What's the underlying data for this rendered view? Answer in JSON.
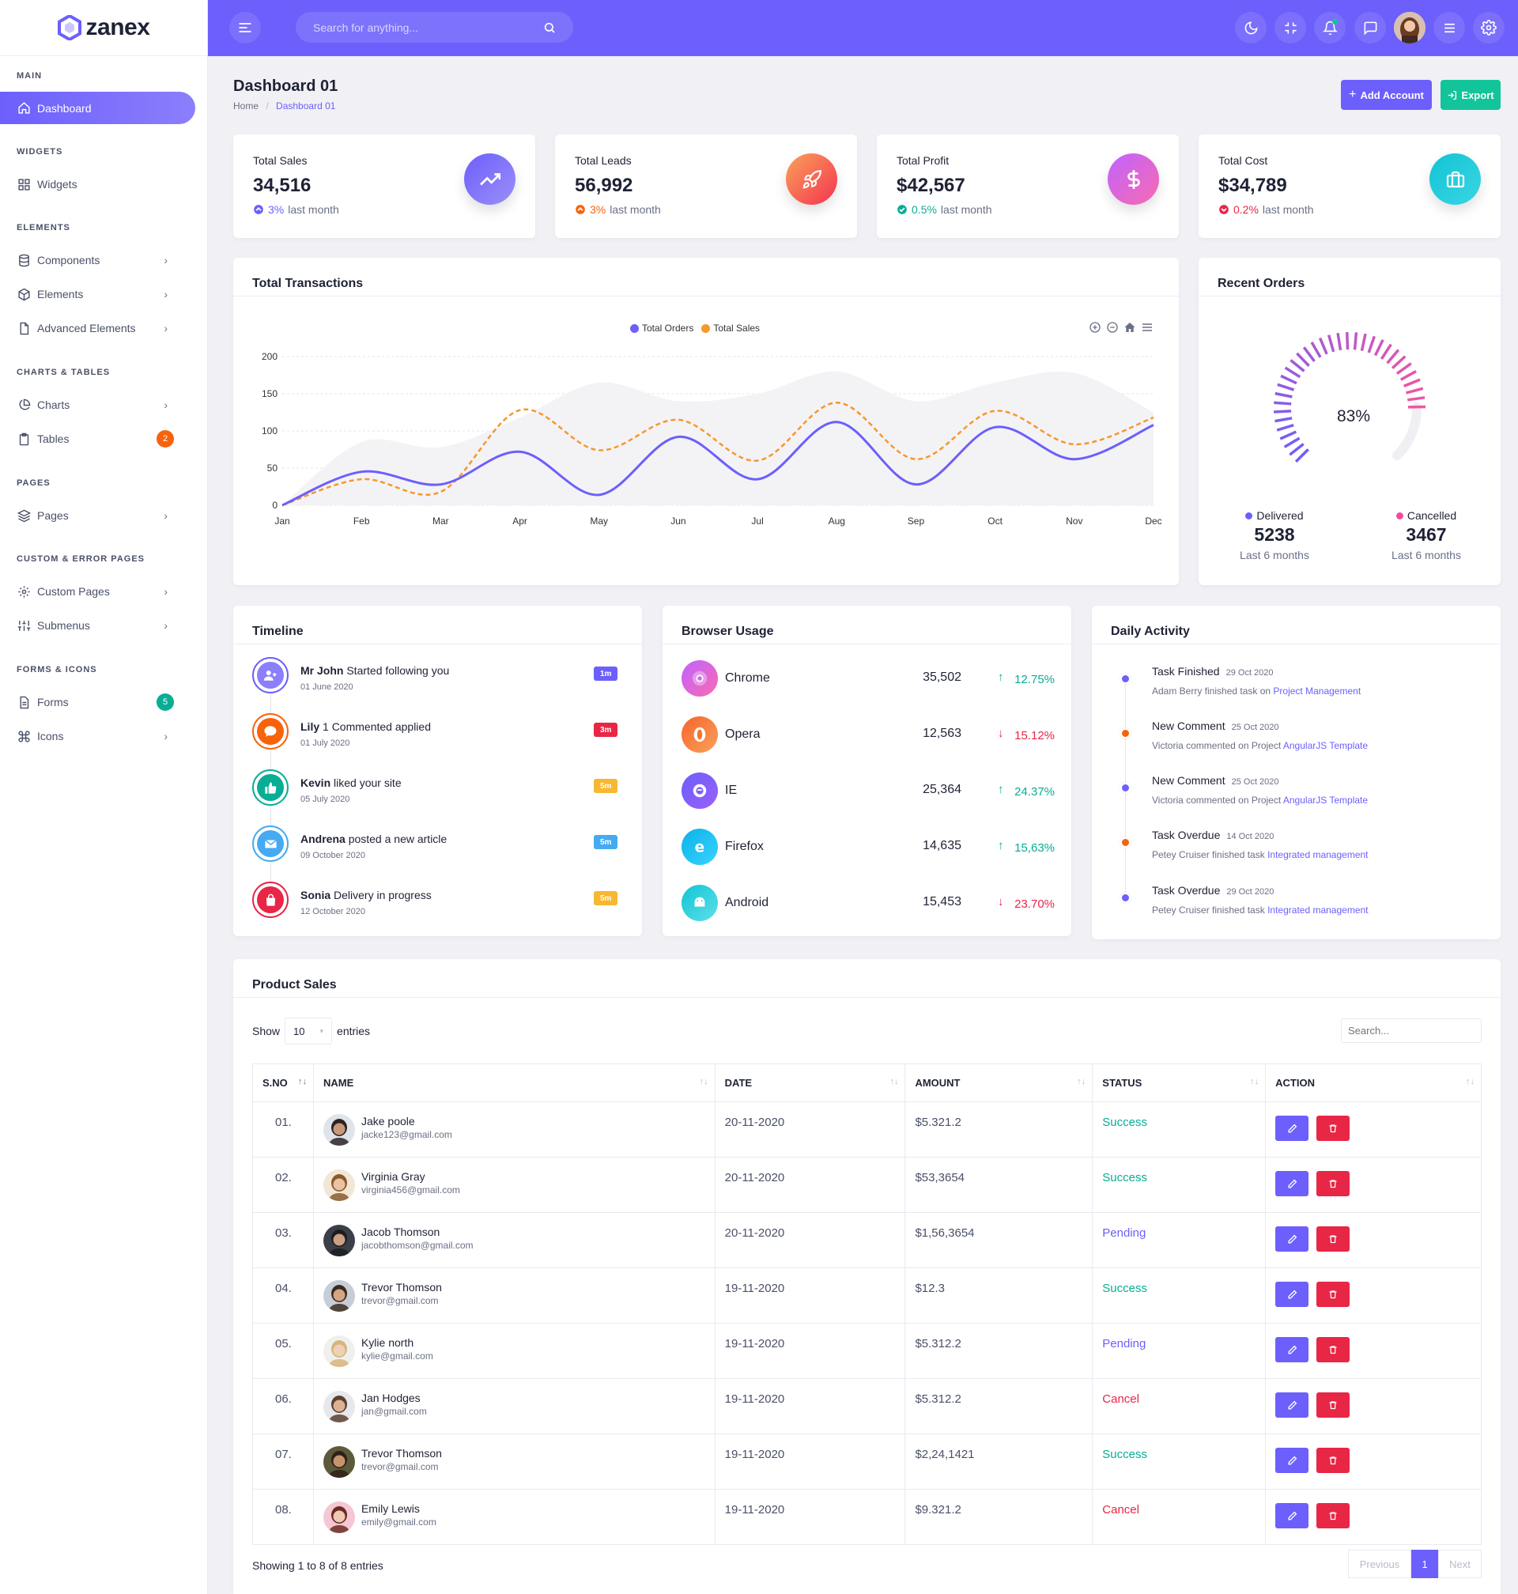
{
  "brand": {
    "name": "zanex"
  },
  "header": {
    "search_placeholder": "Search for anything..."
  },
  "sidebar": {
    "cats": [
      "MAIN",
      "WIDGETS",
      "ELEMENTS",
      "CHARTS & TABLES",
      "PAGES",
      "CUSTOM & ERROR PAGES",
      "FORMS & ICONS"
    ],
    "items": [
      {
        "label": "Dashboard"
      },
      {
        "label": "Widgets"
      },
      {
        "label": "Components"
      },
      {
        "label": "Elements"
      },
      {
        "label": "Advanced Elements"
      },
      {
        "label": "Charts"
      },
      {
        "label": "Tables",
        "badge": "2",
        "badge_color": "#f7630c"
      },
      {
        "label": "Pages"
      },
      {
        "label": "Custom Pages"
      },
      {
        "label": "Submenus"
      },
      {
        "label": "Forms",
        "badge": "5",
        "badge_color": "#09ad95"
      },
      {
        "label": "Icons"
      }
    ]
  },
  "page": {
    "title": "Dashboard 01",
    "breadcrumb": {
      "home": "Home",
      "current": "Dashboard 01",
      "sep": "/"
    },
    "add_account": "Add Account",
    "export": "Export"
  },
  "stats": [
    {
      "label": "Total Sales",
      "value": "34,516",
      "pct": "3%",
      "sub": "last month",
      "trend": "up",
      "color": "#6c5ffc",
      "icon": "trending-up-icon"
    },
    {
      "label": "Total Leads",
      "value": "56,992",
      "pct": "3%",
      "sub": "last month",
      "trend": "up",
      "color": "#f7630c",
      "icon": "rocket-icon"
    },
    {
      "label": "Total Profit",
      "value": "$42,567",
      "pct": "0.5%",
      "sub": "last month",
      "trend": "up",
      "color": "#09ad95",
      "icon": "dollar-icon"
    },
    {
      "label": "Total Cost",
      "value": "$34,789",
      "pct": "0.2%",
      "sub": "last month",
      "trend": "down",
      "color": "#e82646",
      "icon": "briefcase-icon"
    }
  ],
  "transactions": {
    "title": "Total Transactions",
    "chart_data": {
      "type": "line",
      "categories": [
        "Jan",
        "Feb",
        "Mar",
        "Apr",
        "May",
        "Jun",
        "Jul",
        "Aug",
        "Sep",
        "Oct",
        "Nov",
        "Dec"
      ],
      "yticks": [
        0,
        50,
        100,
        150,
        200
      ],
      "ylim": [
        0,
        200
      ],
      "series": [
        {
          "name": "Total Orders",
          "color": "#6c5ffc",
          "values": [
            0,
            45,
            28,
            72,
            14,
            92,
            35,
            112,
            28,
            105,
            62,
            108
          ]
        },
        {
          "name": "Total Sales",
          "color": "#f7972c",
          "values": [
            0,
            35,
            18,
            128,
            74,
            115,
            60,
            138,
            62,
            127,
            82,
            118
          ]
        }
      ],
      "background_band": [
        0,
        85,
        78,
        118,
        165,
        140,
        150,
        180,
        140,
        165,
        178,
        125
      ]
    }
  },
  "recent_orders": {
    "title": "Recent Orders",
    "percent": "83%",
    "delivered": {
      "label": "Delivered",
      "value": "5238",
      "sub": "Last 6 months"
    },
    "cancelled": {
      "label": "Cancelled",
      "value": "3467",
      "sub": "Last 6 months"
    }
  },
  "timeline": {
    "title": "Timeline",
    "items": [
      {
        "name": "Mr John",
        "action": "Started following you",
        "date": "01 June 2020",
        "badge": "1m",
        "color": "#6c5ffc",
        "badge_color": "#6c5ffc",
        "icon": "user-plus-icon"
      },
      {
        "name": "Lily",
        "action": "1 Commented applied",
        "date": "01 July 2020",
        "badge": "3m",
        "color": "#f7630c",
        "badge_color": "#e82646",
        "icon": "comment-icon"
      },
      {
        "name": "Kevin",
        "action": "liked your site",
        "date": "05 July 2020",
        "badge": "5m",
        "color": "#09ad95",
        "badge_color": "#f7b731",
        "icon": "thumbs-up-icon"
      },
      {
        "name": "Andrena",
        "action": "posted a new article",
        "date": "09 October 2020",
        "badge": "5m",
        "color": "#45aaf2",
        "badge_color": "#45aaf2",
        "icon": "mail-icon"
      },
      {
        "name": "Sonia",
        "action": "Delivery in progress",
        "date": "12 October 2020",
        "badge": "5m",
        "color": "#e82646",
        "badge_color": "#f7b731",
        "icon": "bag-icon"
      }
    ]
  },
  "browser": {
    "title": "Browser Usage",
    "rows": [
      {
        "name": "Chrome",
        "value": "35,502",
        "pct": "12.75%",
        "dir": "up",
        "c1": "#c063ff",
        "c2": "#f96ab1",
        "icon": "chrome-icon"
      },
      {
        "name": "Opera",
        "value": "12,563",
        "pct": "15.12%",
        "dir": "down",
        "c1": "#f7632c",
        "c2": "#f9a25a",
        "icon": "opera-icon"
      },
      {
        "name": "IE",
        "value": "25,364",
        "pct": "24.37%",
        "dir": "up",
        "c1": "#6c5ffc",
        "c2": "#9a5ff9",
        "icon": "ie-icon"
      },
      {
        "name": "Firefox",
        "value": "14,635",
        "pct": "15,63%",
        "dir": "up",
        "c1": "#0bb2e8",
        "c2": "#39d3ff",
        "icon": "firefox-icon"
      },
      {
        "name": "Android",
        "value": "15,453",
        "pct": "23.70%",
        "dir": "down",
        "c1": "#11c4d4",
        "c2": "#5ee0e9",
        "icon": "android-icon"
      }
    ]
  },
  "daily": {
    "title": "Daily Activity",
    "items": [
      {
        "title": "Task Finished",
        "date": "29 Oct 2020",
        "desc": "Adam Berry finished task on",
        "link": "Project Management",
        "color": "#6c5ffc"
      },
      {
        "title": "New Comment",
        "date": "25 Oct 2020",
        "desc": "Victoria commented on Project",
        "link": "AngularJS Template",
        "color": "#f7630c"
      },
      {
        "title": "New Comment",
        "date": "25 Oct 2020",
        "desc": "Victoria commented on Project",
        "link": "AngularJS Template",
        "color": "#6c5ffc"
      },
      {
        "title": "Task Overdue",
        "date": "14 Oct 2020",
        "desc": "Petey Cruiser finished task",
        "link": "Integrated management",
        "color": "#f7630c"
      },
      {
        "title": "Task Overdue",
        "date": "29 Oct 2020",
        "desc": "Petey Cruiser finished task",
        "link": "Integrated management",
        "color": "#6c5ffc"
      }
    ]
  },
  "product_sales": {
    "title": "Product Sales",
    "show": "Show",
    "entries_value": "10",
    "entries": "entries",
    "search_placeholder": "Search...",
    "columns": [
      "S.NO",
      "NAME",
      "DATE",
      "AMOUNT",
      "STATUS",
      "ACTION"
    ],
    "rows": [
      {
        "sno": "01.",
        "name": "Jake poole",
        "email": "jacke123@gmail.com",
        "date": "20-11-2020",
        "amount": "$5.321.2",
        "status": "Success",
        "status_color": "#09ad95",
        "skin": "#c99a7a",
        "hair": "#2b2424",
        "bg": "#dfe3ea"
      },
      {
        "sno": "02.",
        "name": "Virginia Gray",
        "email": "virginia456@gmail.com",
        "date": "20-11-2020",
        "amount": "$53,3654",
        "status": "Success",
        "status_color": "#09ad95",
        "skin": "#e9c3a2",
        "hair": "#8a5a2b",
        "bg": "#f2e6d6"
      },
      {
        "sno": "03.",
        "name": "Jacob Thomson",
        "email": "jacobthomson@gmail.com",
        "date": "20-11-2020",
        "amount": "$1,56,3654",
        "status": "Pending",
        "status_color": "#6c5ffc",
        "skin": "#caa183",
        "hair": "#1d1d1d",
        "bg": "#3a3f4a"
      },
      {
        "sno": "04.",
        "name": "Trevor Thomson",
        "email": "trevor@gmail.com",
        "date": "19-11-2020",
        "amount": "$12.3",
        "status": "Success",
        "status_color": "#09ad95",
        "skin": "#d3a584",
        "hair": "#3b2b20",
        "bg": "#c7cdd6"
      },
      {
        "sno": "05.",
        "name": "Kylie north",
        "email": "kylie@gmail.com",
        "date": "19-11-2020",
        "amount": "$5.312.2",
        "status": "Pending",
        "status_color": "#6c5ffc",
        "skin": "#efd0b6",
        "hair": "#d7b57a",
        "bg": "#eef0ee"
      },
      {
        "sno": "06.",
        "name": "Jan Hodges",
        "email": "jan@gmail.com",
        "date": "19-11-2020",
        "amount": "$5.312.2",
        "status": "Cancel",
        "status_color": "#e82646",
        "skin": "#dcb293",
        "hair": "#5a4030",
        "bg": "#e6e8ec"
      },
      {
        "sno": "07.",
        "name": "Trevor Thomson",
        "email": "trevor@gmail.com",
        "date": "19-11-2020",
        "amount": "$2,24,1421",
        "status": "Success",
        "status_color": "#09ad95",
        "skin": "#c6956f",
        "hair": "#2f2117",
        "bg": "#5b5a3a"
      },
      {
        "sno": "08.",
        "name": "Emily Lewis",
        "email": "emily@gmail.com",
        "date": "19-11-2020",
        "amount": "$9.321.2",
        "status": "Cancel",
        "status_color": "#e82646",
        "skin": "#f0c9b4",
        "hair": "#6b2c20",
        "bg": "#f5c6d3"
      }
    ],
    "footer": "Showing 1 to 8 of 8 entries",
    "pager": {
      "prev": "Previous",
      "page": "1",
      "next": "Next"
    }
  },
  "colors": {
    "primary": "#6c5ffc",
    "secondary": "#05c3fb",
    "success": "#13c49a",
    "danger": "#e82646",
    "warning": "#f7630c"
  }
}
